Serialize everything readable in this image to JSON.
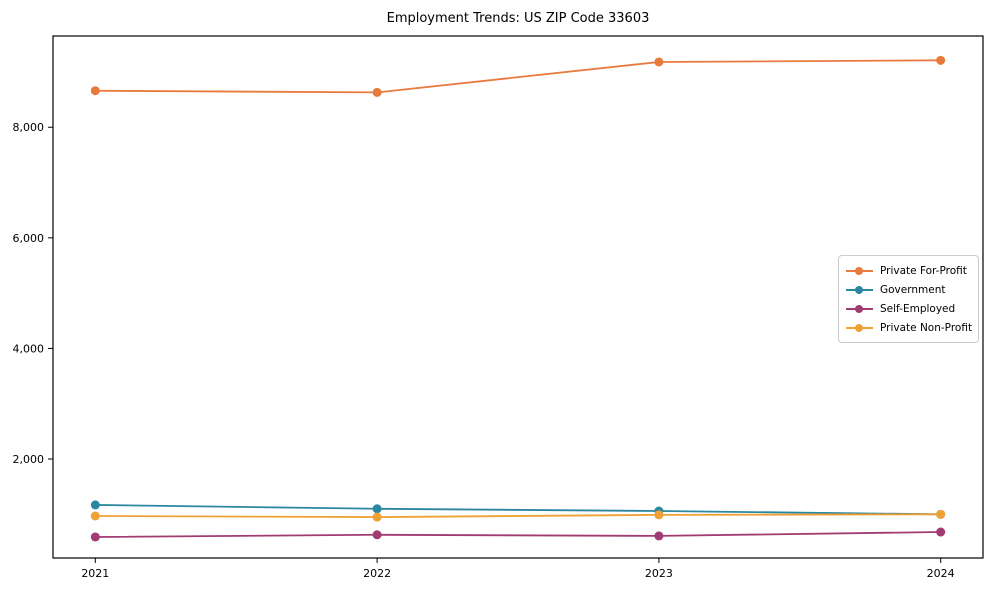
{
  "title": "Employment Trends: US ZIP Code 33603",
  "chart_data": {
    "type": "line",
    "title": "Employment Trends: US ZIP Code 33603",
    "xlabel": "",
    "ylabel": "",
    "x": [
      2021,
      2022,
      2023,
      2024
    ],
    "x_tick_labels": [
      "2021",
      "2022",
      "2023",
      "2024"
    ],
    "series": [
      {
        "name": "Private For-Profit",
        "color": "#e87a3d",
        "values": [
          8660,
          8630,
          9180,
          9210
        ]
      },
      {
        "name": "Government",
        "color": "#2b87a0",
        "values": [
          1170,
          1100,
          1060,
          1000
        ]
      },
      {
        "name": "Self-Employed",
        "color": "#a23b72",
        "values": [
          590,
          630,
          610,
          680
        ]
      },
      {
        "name": "Private Non-Profit",
        "color": "#f0a136",
        "values": [
          970,
          950,
          990,
          1000
        ]
      }
    ],
    "ylim": [
      210,
      9650
    ],
    "yticks": [
      2000,
      4000,
      6000,
      8000
    ],
    "ytick_labels": [
      "2,000",
      "4,000",
      "6,000",
      "8,000"
    ],
    "grid": false,
    "legend_position": "center-right",
    "marker": "circle",
    "axis_color": "#000000",
    "background_color": "#ffffff"
  }
}
